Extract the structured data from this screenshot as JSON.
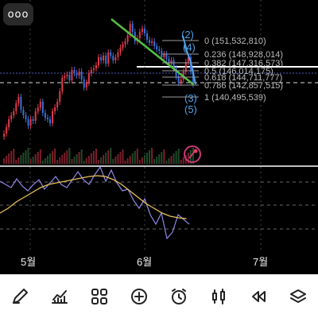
{
  "chart_data": {
    "type": "candlestick",
    "x_labels": [
      "5월",
      "6월",
      "7월"
    ],
    "fib_levels": [
      {
        "label": "0 (151,532,810)"
      },
      {
        "label": "0.236 (148,928,014)"
      },
      {
        "label": "0.382 (147,316,573)"
      },
      {
        "label": "0.5 (146,014,175)"
      },
      {
        "label": "0.618 (144,711,777)"
      },
      {
        "label": "0.786 (142,857,515)"
      },
      {
        "label": "1 (140,495,539)"
      }
    ],
    "wave_labels": [
      "(2)",
      "(4)",
      "(3)",
      "(5)"
    ],
    "indicators": [
      "volume",
      "RSI"
    ]
  },
  "colors": {
    "up": "#e0394b",
    "down": "#3b6fd8",
    "trendline": "#55c043",
    "fib": "#9a9a9a",
    "rsi": "#8f87e6",
    "rsi_signal": "#e8c15a",
    "wave": "#4ea1e6"
  },
  "menu": {
    "more_label": "ooo"
  },
  "toolbar": [
    {
      "name": "draw-tool",
      "icon": "pen-icon"
    },
    {
      "name": "indicator-tool",
      "icon": "chart-icon"
    },
    {
      "name": "grid-tool",
      "icon": "grid-icon"
    },
    {
      "name": "add-tool",
      "icon": "plus-circle-icon"
    },
    {
      "name": "alarm-tool",
      "icon": "alarm-icon"
    },
    {
      "name": "candle-tool",
      "icon": "candles-icon"
    },
    {
      "name": "rewind-tool",
      "icon": "rewind-icon"
    },
    {
      "name": "layers-tool",
      "icon": "layers-icon"
    }
  ]
}
